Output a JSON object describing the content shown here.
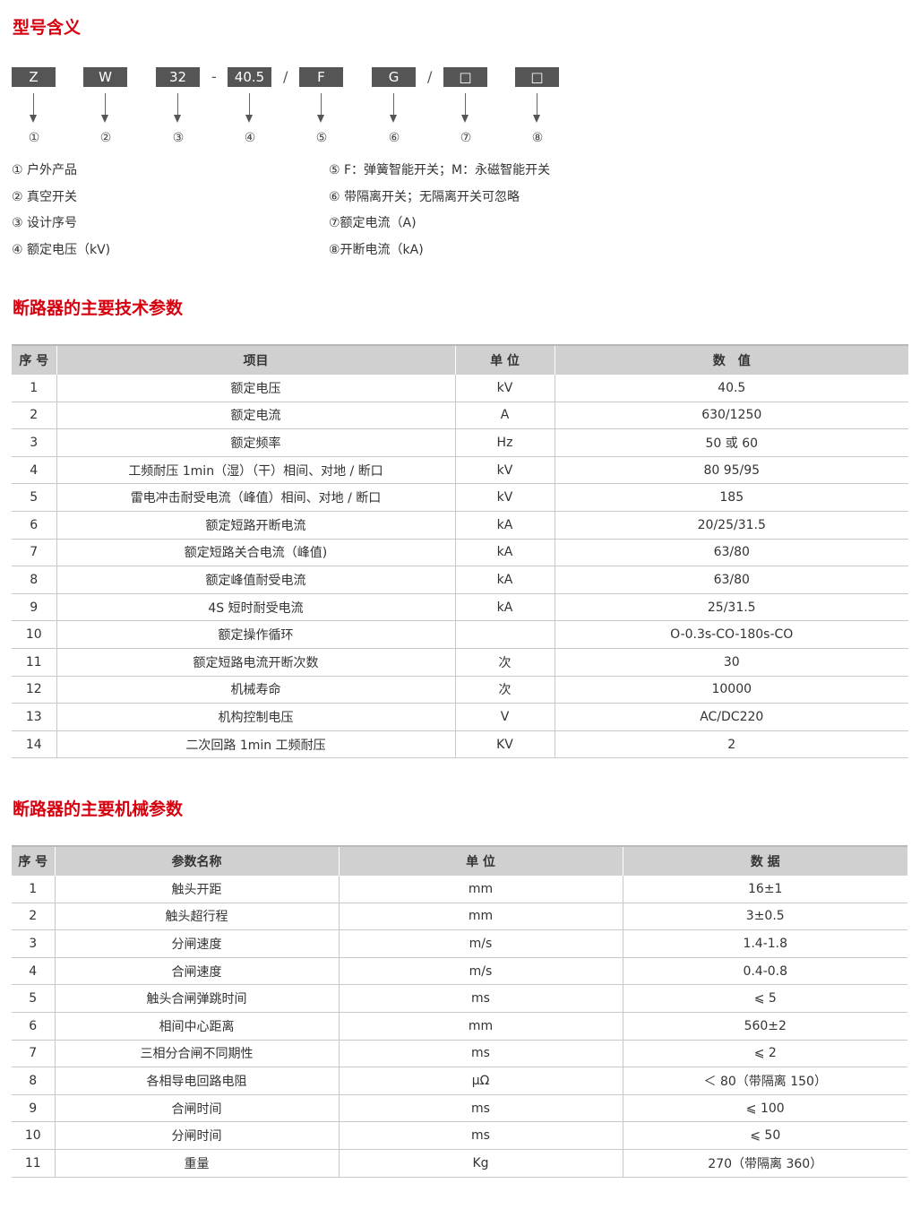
{
  "sections": {
    "model": "型号含义",
    "tech": "断路器的主要技术参数",
    "mech": "断路器的主要机械参数"
  },
  "colors": {
    "accent": "#d7000f",
    "code_box": "#555555",
    "header_bg": "#d0d0d0"
  },
  "model_codes": [
    "Z",
    "W",
    "32",
    "40.5",
    "F",
    "G",
    "□",
    "□"
  ],
  "separators": [
    "-",
    "/",
    "/"
  ],
  "circled": [
    "①",
    "②",
    "③",
    "④",
    "⑤",
    "⑥",
    "⑦",
    "⑧"
  ],
  "legend_left": [
    "① 户外产品",
    "② 真空开关",
    "③ 设计序号",
    "④ 额定电压（kV)"
  ],
  "legend_right": [
    "⑤ F：弹簧智能开关；M：永磁智能开关",
    "⑥ 带隔离开关；无隔离开关可忽略",
    "⑦额定电流（A)",
    "⑧开断电流（kA)"
  ],
  "tech_table": {
    "headers": [
      "序 号",
      "项目",
      "单 位",
      "数　值"
    ],
    "rows": [
      [
        "1",
        "额定电压",
        "kV",
        "40.5"
      ],
      [
        "2",
        "额定电流",
        "A",
        "630/1250"
      ],
      [
        "3",
        "额定频率",
        "Hz",
        "50 或 60"
      ],
      [
        "4",
        "工频耐压 1min（湿）（干）相间、对地 / 断口",
        "kV",
        "80 95/95"
      ],
      [
        "5",
        "雷电冲击耐受电流（峰值）相间、对地 / 断口",
        "kV",
        "185"
      ],
      [
        "6",
        "额定短路开断电流",
        "kA",
        "20/25/31.5"
      ],
      [
        "7",
        "额定短路关合电流（峰值)",
        "kA",
        "63/80"
      ],
      [
        "8",
        "额定峰值耐受电流",
        "kA",
        "63/80"
      ],
      [
        "9",
        "4S 短时耐受电流",
        "kA",
        "25/31.5"
      ],
      [
        "10",
        "额定操作循环",
        "",
        "O-0.3s-CO-180s-CO"
      ],
      [
        "11",
        "额定短路电流开断次数",
        "次",
        "30"
      ],
      [
        "12",
        "机械寿命",
        "次",
        "10000"
      ],
      [
        "13",
        "机构控制电压",
        "V",
        "AC/DC220"
      ],
      [
        "14",
        "二次回路 1min 工频耐压",
        "KV",
        "2"
      ]
    ]
  },
  "mech_table": {
    "headers": [
      "序 号",
      "参数名称",
      "单 位",
      "数 据"
    ],
    "rows": [
      [
        "1",
        "触头开距",
        "mm",
        "16±1"
      ],
      [
        "2",
        "触头超行程",
        "mm",
        "3±0.5"
      ],
      [
        "3",
        "分闸速度",
        "m/s",
        "1.4-1.8"
      ],
      [
        "4",
        "合闸速度",
        "m/s",
        "0.4-0.8"
      ],
      [
        "5",
        "触头合闸弹跳时间",
        "ms",
        "⩽ 5"
      ],
      [
        "6",
        "相间中心距离",
        "mm",
        "560±2"
      ],
      [
        "7",
        "三相分合闸不同期性",
        "ms",
        "⩽ 2"
      ],
      [
        "8",
        "各相导电回路电阻",
        "μΩ",
        "＜ 80（带隔离 150）"
      ],
      [
        "9",
        "合闸时间",
        "ms",
        "⩽ 100"
      ],
      [
        "10",
        "分闸时间",
        "ms",
        "⩽ 50"
      ],
      [
        "11",
        "重量",
        "Kg",
        "270（带隔离 360）"
      ]
    ]
  }
}
